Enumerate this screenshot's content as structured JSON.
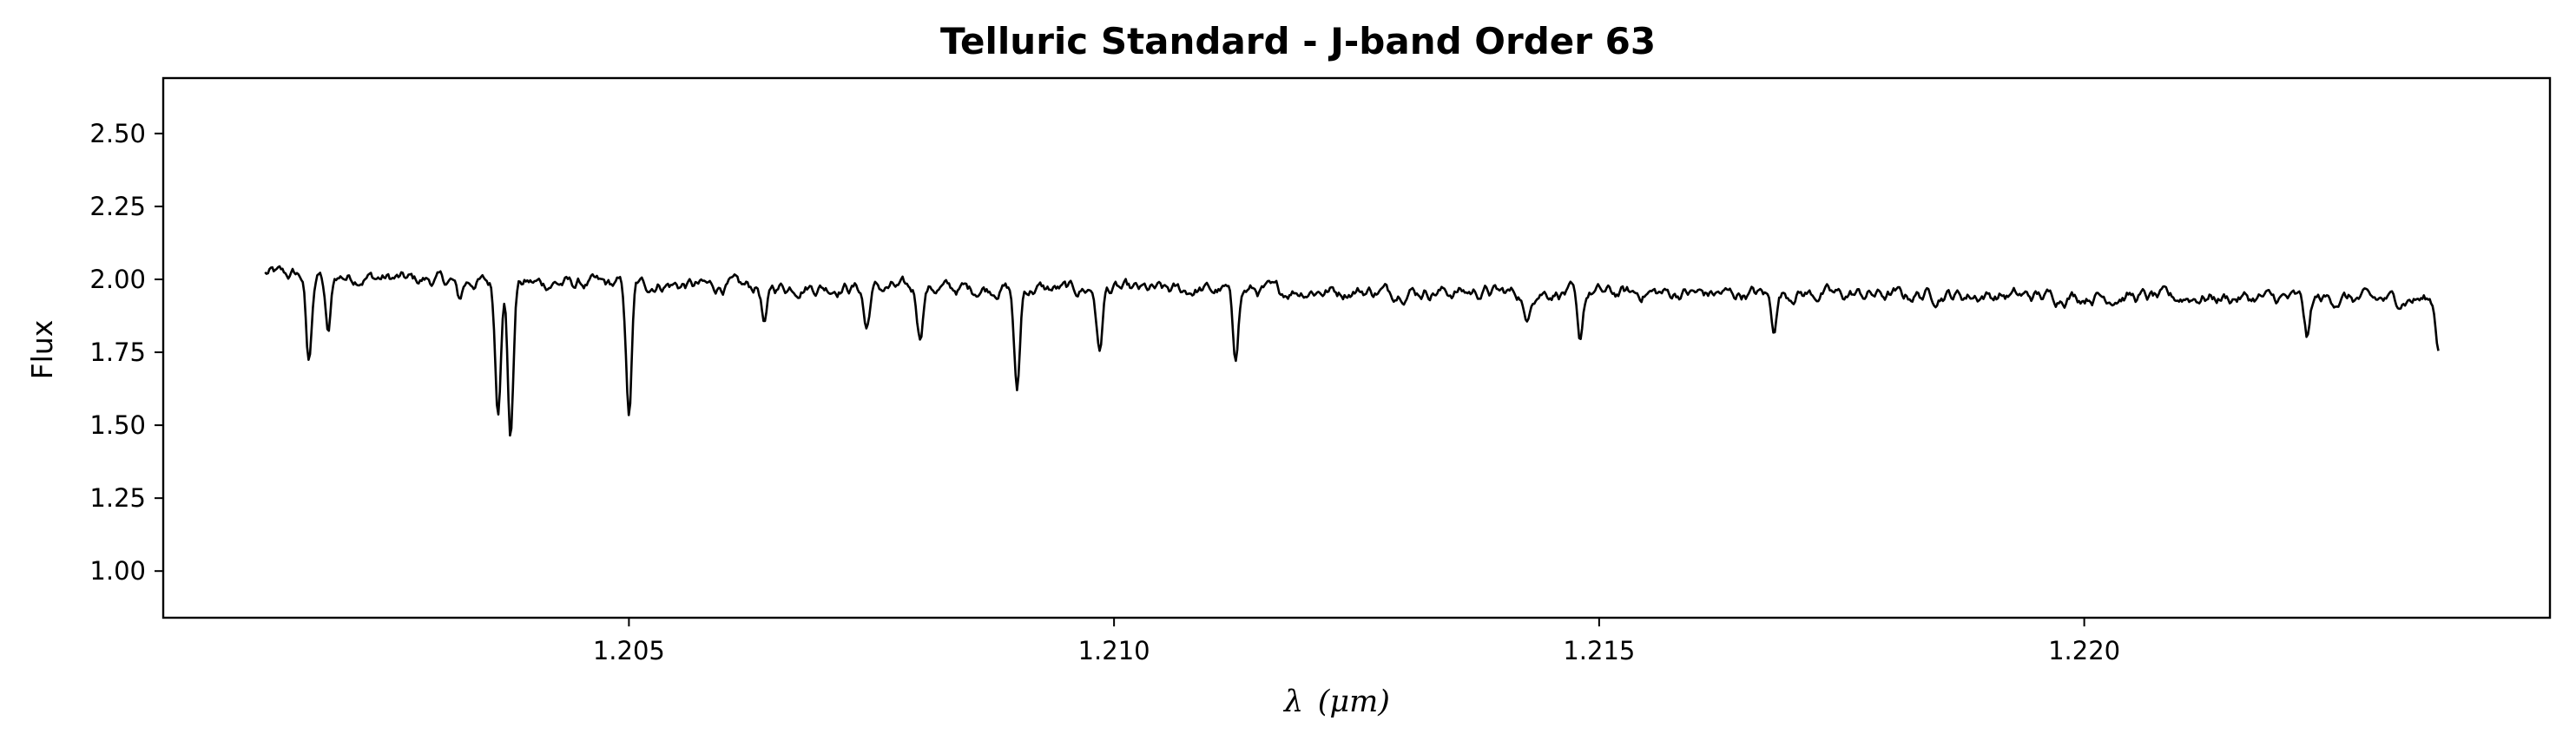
{
  "chart_data": {
    "type": "line",
    "title": "Telluric Standard - J-band Order 63",
    "xlabel": "λ (μm)",
    "xlabel_symbol": "λ",
    "xlabel_unit": "(μm)",
    "ylabel": "Flux",
    "xlim": [
      1.2002,
      1.2248
    ],
    "ylim": [
      0.84,
      2.69
    ],
    "xticks": [
      1.205,
      1.21,
      1.215,
      1.22
    ],
    "xtick_labels": [
      "1.205",
      "1.210",
      "1.215",
      "1.220"
    ],
    "yticks": [
      1.0,
      1.25,
      1.5,
      1.75,
      2.0,
      2.25,
      2.5
    ],
    "ytick_labels": [
      "1.00",
      "1.25",
      "1.50",
      "1.75",
      "2.00",
      "2.25",
      "2.50"
    ],
    "grid": false,
    "line_color": "#000000",
    "series": [
      {
        "x_start": 1.20125,
        "x_end": 1.22365,
        "continuum": [
          [
            1.20125,
            2.02
          ],
          [
            1.2035,
            1.99
          ],
          [
            1.2075,
            1.97
          ],
          [
            1.212,
            1.96
          ],
          [
            1.217,
            1.95
          ],
          [
            1.2236,
            1.93
          ]
        ],
        "noise_amplitude": 0.025,
        "absorption_lines": [
          {
            "x": 1.2017,
            "y_min": 1.71
          },
          {
            "x": 1.2019,
            "y_min": 1.81
          },
          {
            "x": 1.20325,
            "y_min": 1.93
          },
          {
            "x": 1.20365,
            "y_min": 1.56
          },
          {
            "x": 1.20378,
            "y_min": 1.46
          },
          {
            "x": 1.205,
            "y_min": 1.53
          },
          {
            "x": 1.2064,
            "y_min": 1.84
          },
          {
            "x": 1.20745,
            "y_min": 1.83
          },
          {
            "x": 1.208,
            "y_min": 1.81
          },
          {
            "x": 1.209,
            "y_min": 1.61
          },
          {
            "x": 1.20985,
            "y_min": 1.75
          },
          {
            "x": 1.21125,
            "y_min": 1.74
          },
          {
            "x": 1.2148,
            "y_min": 1.78
          },
          {
            "x": 1.21425,
            "y_min": 1.84
          },
          {
            "x": 1.2168,
            "y_min": 1.84
          },
          {
            "x": 1.2223,
            "y_min": 1.8
          },
          {
            "x": 1.22365,
            "y_min": 1.78
          }
        ]
      }
    ]
  }
}
